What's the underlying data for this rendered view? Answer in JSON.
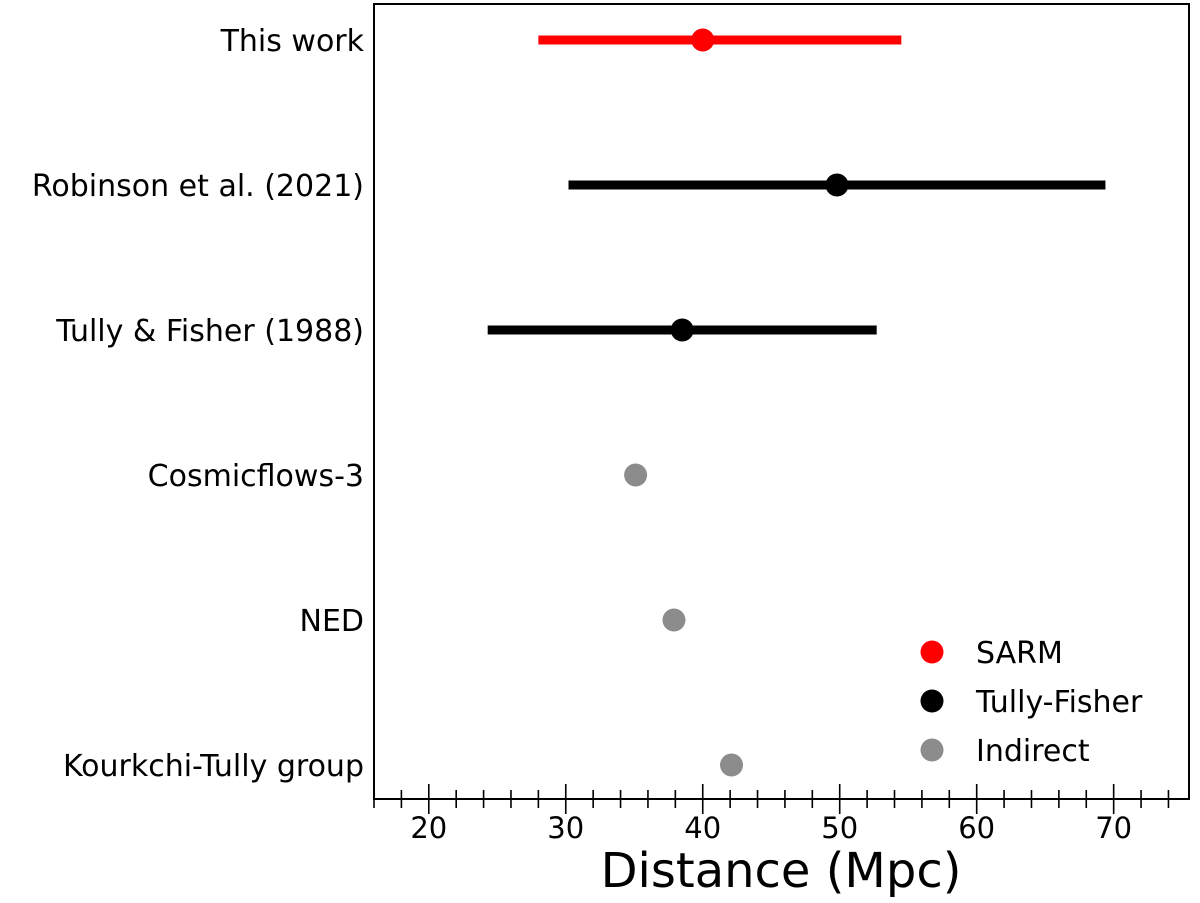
{
  "chart_data": {
    "type": "scatter",
    "xlabel": "Distance (Mpc)",
    "ylabel": "",
    "xlim": [
      16,
      75.5
    ],
    "x_ticks_major": [
      20,
      30,
      40,
      50,
      60,
      70
    ],
    "x_ticks_minor_step": 2,
    "grid": false,
    "legend_position": "bottom-right",
    "legend": [
      {
        "name": "SARM",
        "color": "#ff0000"
      },
      {
        "name": "Tully-Fisher",
        "color": "#000000"
      },
      {
        "name": "Indirect",
        "color": "#8c8c8c"
      }
    ],
    "measurements": [
      {
        "label": "This work",
        "value": 40.0,
        "low": 28.0,
        "high": 54.5,
        "method": "SARM",
        "color": "#ff0000"
      },
      {
        "label": "Robinson et al. (2021)",
        "value": 49.8,
        "low": 30.2,
        "high": 69.4,
        "method": "Tully-Fisher",
        "color": "#000000"
      },
      {
        "label": "Tully & Fisher (1988)",
        "value": 38.5,
        "low": 24.3,
        "high": 52.7,
        "method": "Tully-Fisher",
        "color": "#000000"
      },
      {
        "label": "Cosmicflows-3",
        "value": 35.1,
        "low": null,
        "high": null,
        "method": "Indirect",
        "color": "#8c8c8c"
      },
      {
        "label": "NED",
        "value": 37.9,
        "low": null,
        "high": null,
        "method": "Indirect",
        "color": "#8c8c8c"
      },
      {
        "label": "Kourkchi-Tully group",
        "value": 42.1,
        "low": null,
        "high": null,
        "method": "Indirect",
        "color": "#8c8c8c"
      }
    ]
  }
}
